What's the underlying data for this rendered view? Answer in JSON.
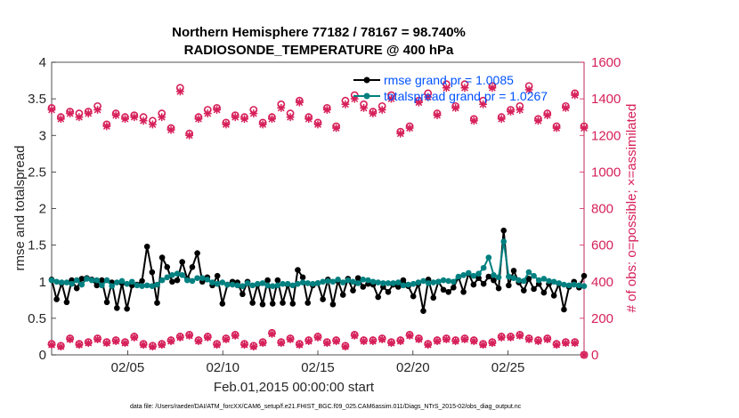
{
  "chart_data": {
    "type": "line",
    "title": "Northern Hemisphere 77182 / 78167 = 98.740%",
    "subtitle": "RADIOSONDE_TEMPERATURE @ 400 hPa",
    "xlabel": "Feb.01,2015 00:00:00 start",
    "ylabel_left": "rmse and totalspread",
    "ylabel_right": "# of obs: o=possible; ×=assimilated",
    "footnote": "data file: /Users/raeder/DAI/ATM_forcXX/CAM6_setup/f.e21.FHIST_BGC.f09_025.CAM6assim.011/Diags_NTrS_2015-02/obs_diag_output.nc",
    "x_ticks": [
      {
        "value": 5,
        "label": "02/05"
      },
      {
        "value": 10,
        "label": "02/10"
      },
      {
        "value": 15,
        "label": "02/15"
      },
      {
        "value": 20,
        "label": "02/20"
      },
      {
        "value": 25,
        "label": "02/25"
      }
    ],
    "xlim": [
      1,
      29
    ],
    "ylim_left": [
      0,
      4
    ],
    "ylim_right": [
      0,
      1600
    ],
    "yticks_left": [
      "0",
      "0.5",
      "1",
      "1.5",
      "2",
      "2.5",
      "3",
      "3.5",
      "4"
    ],
    "yticks_right": [
      "0",
      "200",
      "400",
      "600",
      "800",
      "1000",
      "1200",
      "1400",
      "1600"
    ],
    "colors": {
      "rmse": "#000000",
      "totalspread": "#008080",
      "obs": "#d6205a",
      "legend_text": "#0052ff"
    },
    "series": [
      {
        "name": "rmse grand pr = 1.0085",
        "axis": "left",
        "marker": "circle",
        "values": [
          1.03,
          0.76,
          0.98,
          0.72,
          1.02,
          0.91,
          1.04,
          1.05,
          1.03,
          0.95,
          1.02,
          0.72,
          0.99,
          0.64,
          0.98,
          0.63,
          0.95,
          0.96,
          1.01,
          1.48,
          1.13,
          0.71,
          1.33,
          1.2,
          1.0,
          1.02,
          1.27,
          1.04,
          1.2,
          1.39,
          1.0,
          1.06,
          0.95,
          1.08,
          0.7,
          0.96,
          1.0,
          0.99,
          0.83,
          1.0,
          0.71,
          0.96,
          0.69,
          1.02,
          0.7,
          1.02,
          0.71,
          0.96,
          0.7,
          1.16,
          1.06,
          0.71,
          0.95,
          0.98,
          0.76,
          1.03,
          0.69,
          1.01,
          0.82,
          1.04,
          0.88,
          1.05,
          0.93,
          0.97,
          0.96,
          0.79,
          0.93,
          0.86,
          0.96,
          0.93,
          1.02,
          0.94,
          0.8,
          0.97,
          0.6,
          1.03,
          0.78,
          1.0,
          0.89,
          0.86,
          0.92,
          1.06,
          0.86,
          1.11,
          0.96,
          1.05,
          0.97,
          1.07,
          1.02,
          0.91,
          1.7,
          0.95,
          1.15,
          0.99,
          0.88,
          1.04,
          0.9,
          0.97,
          0.85,
          0.97,
          0.81,
          0.97,
          0.62,
          0.93,
          1.0,
          0.92,
          1.08
        ]
      },
      {
        "name": "totalspread grand pr = 1.0267",
        "axis": "left",
        "marker": "circle",
        "values": [
          1.02,
          1.0,
          0.99,
          0.99,
          0.97,
          1.02,
          0.96,
          1.04,
          1.02,
          1.02,
          0.95,
          1.02,
          0.94,
          0.99,
          1.01,
          0.97,
          1.0,
          0.95,
          0.94,
          0.95,
          0.94,
          0.96,
          1.02,
          1.06,
          1.09,
          1.11,
          1.09,
          1.02,
          1.01,
          1.05,
          1.05,
          1.03,
          0.99,
          0.97,
          0.99,
          0.96,
          0.96,
          0.95,
          0.94,
          0.98,
          0.95,
          0.97,
          0.98,
          0.95,
          0.94,
          0.95,
          0.97,
          0.97,
          0.95,
          0.97,
          0.99,
          0.98,
          0.97,
          0.98,
          1.0,
          1.01,
          1.0,
          1.03,
          0.99,
          1.02,
          1.0,
          0.98,
          1.03,
          1.02,
          1.0,
          0.99,
          0.98,
          0.98,
          0.98,
          0.99,
          0.95,
          0.96,
          0.97,
          0.99,
          1.01,
          0.98,
          0.99,
          1.0,
          1.02,
          1.01,
          1.0,
          1.07,
          1.09,
          1.12,
          1.08,
          1.11,
          1.19,
          1.33,
          1.09,
          1.06,
          1.55,
          1.07,
          1.05,
          1.02,
          1.01,
          1.13,
          1.08,
          1.02,
          1.04,
          1.01,
          1.0,
          0.98,
          0.96,
          0.95,
          0.96,
          0.95,
          0.94
        ]
      },
      {
        "name": "obs possible",
        "axis": "right",
        "marker": "o",
        "values": [
          1350,
          1300,
          1330,
          1320,
          1330,
          1360,
          1260,
          1320,
          1300,
          1310,
          1300,
          1280,
          1320,
          1240,
          1460,
          1210,
          1300,
          1340,
          1350,
          1270,
          1310,
          1300,
          1340,
          1270,
          1300,
          1370,
          1320,
          1390,
          1300,
          1270,
          1350,
          1250,
          1390,
          1420,
          1370,
          1330,
          1360,
          1420,
          1220,
          1250,
          1390,
          1430,
          1320,
          1480,
          1360,
          1480,
          1290,
          1390,
          1470,
          1300,
          1340,
          1360,
          1470,
          1290,
          1320,
          1250,
          1360,
          1430,
          1250
        ]
      },
      {
        "name": "obs assimilated",
        "axis": "right",
        "marker": "x",
        "values": [
          1340,
          1290,
          1320,
          1300,
          1320,
          1340,
          1250,
          1310,
          1290,
          1300,
          1280,
          1260,
          1300,
          1230,
          1440,
          1200,
          1290,
          1320,
          1340,
          1260,
          1300,
          1290,
          1320,
          1260,
          1290,
          1350,
          1300,
          1380,
          1290,
          1260,
          1340,
          1240,
          1370,
          1400,
          1350,
          1320,
          1340,
          1400,
          1210,
          1240,
          1380,
          1410,
          1310,
          1460,
          1350,
          1460,
          1280,
          1370,
          1460,
          1290,
          1330,
          1340,
          1450,
          1280,
          1310,
          1240,
          1350,
          1420,
          1240
        ]
      },
      {
        "name": "obs possible (second group)",
        "axis": "right",
        "marker": "o",
        "values": [
          60,
          50,
          90,
          60,
          70,
          90,
          70,
          80,
          70,
          100,
          60,
          50,
          60,
          80,
          100,
          110,
          80,
          100,
          60,
          90,
          110,
          60,
          50,
          70,
          120,
          70,
          90,
          60,
          80,
          100,
          70,
          80,
          50,
          110,
          80,
          80,
          90,
          70,
          80,
          110,
          90,
          60,
          80,
          90,
          80,
          90,
          80,
          60,
          70,
          100,
          100,
          110,
          90,
          80,
          90,
          60,
          70,
          70,
          0
        ]
      },
      {
        "name": "obs assimilated (second group)",
        "axis": "right",
        "marker": "x",
        "values": [
          55,
          45,
          85,
          55,
          65,
          85,
          65,
          75,
          65,
          95,
          55,
          45,
          55,
          75,
          95,
          105,
          75,
          95,
          55,
          85,
          105,
          55,
          45,
          65,
          115,
          65,
          85,
          55,
          75,
          95,
          65,
          75,
          45,
          105,
          75,
          75,
          85,
          65,
          75,
          105,
          85,
          55,
          75,
          85,
          75,
          85,
          75,
          55,
          65,
          95,
          95,
          105,
          85,
          75,
          85,
          55,
          65,
          65,
          0
        ]
      }
    ]
  }
}
